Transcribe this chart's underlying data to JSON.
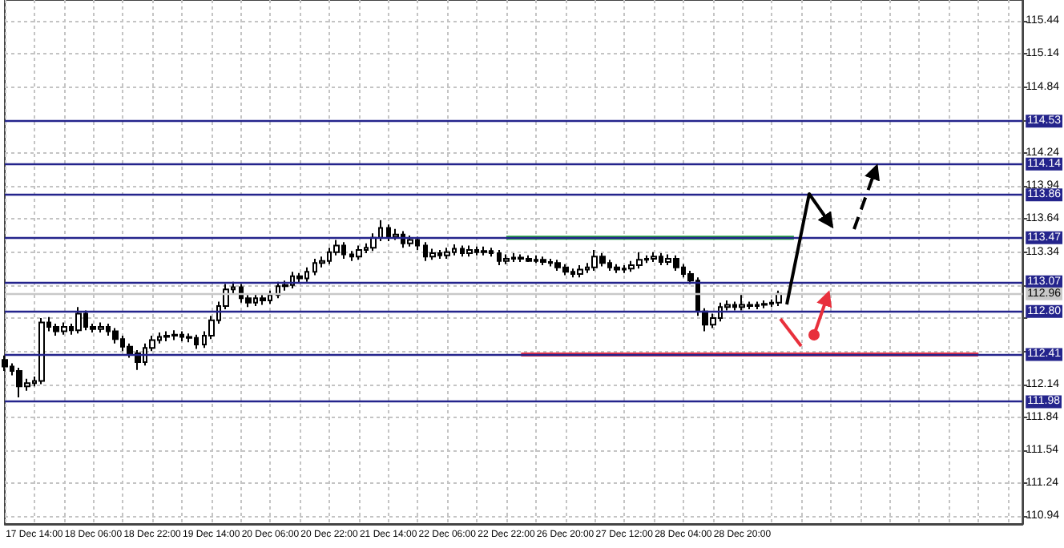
{
  "chart_data": {
    "type": "candlestick",
    "color": "#000000",
    "grid": true,
    "categories": [
      null,
      null,
      null,
      null,
      "17 Dec 14:00",
      null,
      null,
      null,
      null,
      null,
      null,
      null,
      "18 Dec 06:00",
      null,
      null,
      null,
      null,
      null,
      null,
      null,
      "18 Dec 22:00",
      null,
      null,
      null,
      null,
      null,
      null,
      null,
      "19 Dec 14:00",
      null,
      null,
      null,
      null,
      null,
      null,
      null,
      "20 Dec 06:00",
      null,
      null,
      null,
      null,
      null,
      null,
      null,
      "20 Dec 22:00",
      null,
      null,
      null,
      null,
      null,
      null,
      null,
      "21 Dec 14:00",
      null,
      null,
      null,
      null,
      null,
      null,
      null,
      "22 Dec 06:00",
      null,
      null,
      null,
      null,
      null,
      null,
      null,
      "22 Dec 22:00",
      null,
      null,
      null,
      null,
      null,
      null,
      null,
      "26 Dec 20:00",
      null,
      null,
      null,
      null,
      null,
      null,
      null,
      "27 Dec 12:00",
      null,
      null,
      null,
      null,
      null,
      null,
      null,
      "28 Dec 04:00",
      null,
      null,
      null,
      null,
      null,
      null,
      null,
      "28 Dec 20:00",
      null,
      null,
      null,
      null,
      null,
      null,
      null,
      null,
      null,
      null,
      null,
      null,
      null,
      null,
      null,
      null,
      null,
      null,
      null,
      null,
      null,
      null,
      null,
      null,
      null,
      null,
      null,
      null,
      null,
      null,
      null,
      null,
      null,
      null,
      null,
      null,
      null,
      null
    ],
    "ohlc": [
      [
        112.36,
        112.4,
        112.26,
        112.3
      ],
      [
        112.3,
        112.33,
        112.22,
        112.26
      ],
      [
        112.26,
        112.29,
        112.02,
        112.12
      ],
      [
        112.12,
        112.19,
        112.08,
        112.15
      ],
      [
        112.15,
        112.21,
        112.12,
        112.17
      ],
      [
        112.17,
        112.74,
        112.14,
        112.7
      ],
      [
        112.7,
        112.75,
        112.62,
        112.66
      ],
      [
        112.66,
        112.69,
        112.58,
        112.62
      ],
      [
        112.62,
        112.7,
        112.59,
        112.66
      ],
      [
        112.66,
        112.69,
        112.59,
        112.63
      ],
      [
        112.63,
        112.84,
        112.6,
        112.78
      ],
      [
        112.78,
        112.81,
        112.63,
        112.66
      ],
      [
        112.66,
        112.69,
        112.61,
        112.64
      ],
      [
        112.64,
        112.7,
        112.61,
        112.66
      ],
      [
        112.66,
        112.69,
        112.58,
        112.62
      ],
      [
        112.62,
        112.65,
        112.51,
        112.55
      ],
      [
        112.55,
        112.58,
        112.44,
        112.48
      ],
      [
        112.48,
        112.51,
        112.38,
        112.42
      ],
      [
        112.42,
        112.45,
        112.27,
        112.34
      ],
      [
        112.34,
        112.51,
        112.31,
        112.47
      ],
      [
        112.47,
        112.58,
        112.44,
        112.54
      ],
      [
        112.54,
        112.61,
        112.51,
        112.57
      ],
      [
        112.57,
        112.62,
        112.53,
        112.58
      ],
      [
        112.58,
        112.63,
        112.54,
        112.59
      ],
      [
        112.59,
        112.62,
        112.53,
        112.57
      ],
      [
        112.57,
        112.6,
        112.52,
        112.56
      ],
      [
        112.56,
        112.59,
        112.46,
        112.5
      ],
      [
        112.5,
        112.62,
        112.47,
        112.58
      ],
      [
        112.58,
        112.76,
        112.55,
        112.72
      ],
      [
        112.72,
        112.89,
        112.69,
        112.85
      ],
      [
        112.85,
        113.05,
        112.82,
        113.0
      ],
      [
        113.0,
        113.07,
        112.96,
        113.02
      ],
      [
        113.02,
        113.05,
        112.88,
        112.92
      ],
      [
        112.92,
        112.95,
        112.84,
        112.88
      ],
      [
        112.88,
        112.96,
        112.85,
        112.92
      ],
      [
        112.92,
        112.95,
        112.86,
        112.9
      ],
      [
        112.9,
        112.99,
        112.87,
        112.95
      ],
      [
        112.95,
        113.07,
        112.92,
        113.03
      ],
      [
        113.03,
        113.08,
        112.99,
        113.04
      ],
      [
        113.04,
        113.16,
        113.01,
        113.12
      ],
      [
        113.12,
        113.15,
        113.06,
        113.1
      ],
      [
        113.1,
        113.2,
        113.07,
        113.16
      ],
      [
        113.16,
        113.28,
        113.13,
        113.24
      ],
      [
        113.24,
        113.3,
        113.2,
        113.26
      ],
      [
        113.26,
        113.38,
        113.23,
        113.34
      ],
      [
        113.34,
        113.45,
        113.31,
        113.4
      ],
      [
        113.4,
        113.43,
        113.28,
        113.32
      ],
      [
        113.32,
        113.35,
        113.26,
        113.3
      ],
      [
        113.3,
        113.4,
        113.27,
        113.36
      ],
      [
        113.36,
        113.42,
        113.33,
        113.38
      ],
      [
        113.38,
        113.51,
        113.35,
        113.47
      ],
      [
        113.47,
        113.63,
        113.44,
        113.56
      ],
      [
        113.56,
        113.59,
        113.44,
        113.48
      ],
      [
        113.48,
        113.55,
        113.45,
        113.5
      ],
      [
        113.5,
        113.53,
        113.38,
        113.42
      ],
      [
        113.42,
        113.49,
        113.39,
        113.45
      ],
      [
        113.45,
        113.48,
        113.36,
        113.4
      ],
      [
        113.4,
        113.43,
        113.26,
        113.3
      ],
      [
        113.3,
        113.37,
        113.27,
        113.33
      ],
      [
        113.33,
        113.36,
        113.28,
        113.31
      ],
      [
        113.31,
        113.38,
        113.28,
        113.34
      ],
      [
        113.34,
        113.41,
        113.31,
        113.37
      ],
      [
        113.37,
        113.4,
        113.3,
        113.33
      ],
      [
        113.33,
        113.4,
        113.3,
        113.36
      ],
      [
        113.36,
        113.39,
        113.31,
        113.34
      ],
      [
        113.34,
        113.39,
        113.31,
        113.35
      ],
      [
        113.35,
        113.38,
        113.3,
        113.33
      ],
      [
        113.33,
        113.36,
        113.22,
        113.26
      ],
      [
        113.26,
        113.32,
        113.23,
        113.28
      ],
      [
        113.28,
        113.33,
        113.25,
        113.29
      ],
      [
        113.29,
        113.32,
        113.25,
        113.28
      ],
      [
        113.28,
        113.31,
        113.25,
        113.26
      ],
      [
        113.26,
        113.31,
        113.24,
        113.27
      ],
      [
        113.27,
        113.3,
        113.22,
        113.25
      ],
      [
        113.25,
        113.28,
        113.21,
        113.24
      ],
      [
        113.24,
        113.27,
        113.17,
        113.2
      ],
      [
        113.2,
        113.23,
        113.13,
        113.16
      ],
      [
        113.16,
        113.19,
        113.11,
        113.14
      ],
      [
        113.14,
        113.22,
        113.11,
        113.18
      ],
      [
        113.18,
        113.24,
        113.15,
        113.2
      ],
      [
        113.2,
        113.36,
        113.17,
        113.3
      ],
      [
        113.3,
        113.33,
        113.21,
        113.24
      ],
      [
        113.24,
        113.27,
        113.17,
        113.2
      ],
      [
        113.2,
        113.23,
        113.15,
        113.18
      ],
      [
        113.18,
        113.22,
        113.15,
        113.19
      ],
      [
        113.19,
        113.26,
        113.16,
        113.22
      ],
      [
        113.22,
        113.34,
        113.19,
        113.27
      ],
      [
        113.27,
        113.31,
        113.24,
        113.28
      ],
      [
        113.28,
        113.34,
        113.25,
        113.3
      ],
      [
        113.3,
        113.33,
        113.22,
        113.25
      ],
      [
        113.25,
        113.32,
        113.22,
        113.28
      ],
      [
        113.28,
        113.31,
        113.17,
        113.2
      ],
      [
        113.2,
        113.23,
        113.11,
        113.14
      ],
      [
        113.14,
        113.17,
        113.05,
        113.08
      ],
      [
        113.08,
        113.11,
        112.76,
        112.8
      ],
      [
        112.8,
        112.83,
        112.62,
        112.68
      ],
      [
        112.68,
        112.78,
        112.65,
        112.74
      ],
      [
        112.74,
        112.88,
        112.71,
        112.84
      ],
      [
        112.84,
        112.9,
        112.81,
        112.86
      ],
      [
        112.86,
        112.89,
        112.81,
        112.84
      ],
      [
        112.84,
        112.96,
        112.81,
        112.86
      ],
      [
        112.86,
        112.89,
        112.82,
        112.85
      ],
      [
        112.85,
        112.89,
        112.82,
        112.86
      ],
      [
        112.86,
        112.9,
        112.83,
        112.87
      ],
      [
        112.87,
        112.91,
        112.84,
        112.88
      ],
      [
        112.88,
        112.99,
        112.85,
        112.96
      ],
      null,
      null,
      null,
      null,
      null,
      null,
      null,
      null,
      null,
      null,
      null,
      null,
      null,
      null,
      null,
      null,
      null,
      null,
      null,
      null,
      null,
      null,
      null,
      null,
      null,
      null,
      null,
      null,
      null,
      null,
      null,
      null,
      null
    ],
    "series": [
      {
        "type": "line",
        "color": "#22a03c",
        "values": [
          null,
          null,
          null,
          null,
          null,
          null,
          null,
          null,
          null,
          null,
          null,
          null,
          null,
          null,
          null,
          null,
          null,
          null,
          null,
          null,
          null,
          null,
          null,
          null,
          null,
          null,
          null,
          null,
          null,
          null,
          null,
          null,
          null,
          null,
          null,
          null,
          null,
          null,
          null,
          null,
          null,
          null,
          null,
          null,
          null,
          null,
          null,
          null,
          null,
          null,
          null,
          null,
          null,
          null,
          null,
          null,
          null,
          null,
          null,
          null,
          null,
          null,
          null,
          null,
          null,
          null,
          null,
          null,
          113.47,
          113.47,
          113.47,
          113.47,
          113.47,
          113.47,
          113.47,
          113.47,
          113.47,
          113.47,
          113.47,
          113.47,
          113.47,
          113.47,
          113.47,
          113.47,
          113.47,
          113.47,
          113.47,
          113.47,
          113.47,
          113.47,
          113.47,
          113.47,
          113.47,
          113.47,
          113.47,
          113.47,
          113.47,
          113.47,
          113.47,
          113.47,
          113.47,
          113.47,
          113.47,
          113.47,
          113.47,
          113.47,
          113.47,
          113.47,
          null,
          null,
          null,
          null,
          null,
          null,
          null,
          null,
          null,
          null,
          null,
          null,
          null,
          null,
          null,
          null,
          null,
          null,
          null,
          null,
          null,
          null,
          null,
          null,
          null,
          null,
          null,
          null,
          null,
          null,
          null
        ]
      },
      {
        "type": "line",
        "color": "#ee3344",
        "values": [
          null,
          null,
          null,
          null,
          null,
          null,
          null,
          null,
          null,
          null,
          null,
          null,
          null,
          null,
          null,
          null,
          null,
          null,
          null,
          null,
          null,
          null,
          null,
          null,
          null,
          null,
          null,
          null,
          null,
          null,
          null,
          null,
          null,
          null,
          null,
          null,
          null,
          null,
          null,
          null,
          null,
          null,
          null,
          null,
          null,
          null,
          null,
          null,
          null,
          null,
          null,
          null,
          null,
          null,
          null,
          null,
          null,
          null,
          null,
          null,
          null,
          null,
          null,
          null,
          null,
          null,
          null,
          null,
          null,
          null,
          112.41,
          112.41,
          112.41,
          112.41,
          112.41,
          112.41,
          112.41,
          112.41,
          112.41,
          112.41,
          112.41,
          112.41,
          112.41,
          112.41,
          112.41,
          112.41,
          112.41,
          112.41,
          112.41,
          112.41,
          112.41,
          112.41,
          112.41,
          112.41,
          112.41,
          112.41,
          112.41,
          112.41,
          112.41,
          112.41,
          112.41,
          112.41,
          112.41,
          112.41,
          112.41,
          112.41,
          112.41,
          112.41,
          112.41,
          112.41,
          112.41,
          112.41,
          112.41,
          112.41,
          112.41,
          112.41,
          112.41,
          112.41,
          112.41,
          112.41,
          112.41,
          112.41,
          112.41,
          112.41,
          112.41,
          112.41,
          112.41,
          112.41,
          112.41,
          112.41,
          112.41,
          112.41,
          112.41,
          null,
          null,
          null,
          null,
          null,
          null
        ]
      }
    ],
    "ylim": [
      110.87,
      115.63
    ],
    "yticks": [
      110.94,
      111.24,
      111.54,
      111.84,
      112.14,
      {
        "value": 112.44,
        "label": null
      },
      {
        "value": 112.74,
        "label": null
      },
      {
        "value": 113.04,
        "label": null
      },
      113.34,
      113.64,
      113.94,
      114.24,
      114.54,
      114.84,
      115.14,
      115.44
    ],
    "ref_lines": [
      {
        "axis": "y",
        "value": 114.53,
        "label": "114.53",
        "color": "#24248c"
      },
      {
        "axis": "y",
        "value": 114.14,
        "label": "114.14",
        "color": "#24248c"
      },
      {
        "axis": "y",
        "value": 113.86,
        "label": "113.86",
        "color": "#24248c"
      },
      {
        "axis": "y",
        "value": 113.47,
        "label": "113.47",
        "color": "#24248c"
      },
      {
        "axis": "y",
        "value": 113.07,
        "label": "113.07",
        "color": "#24248c"
      },
      {
        "axis": "y",
        "value": 112.96,
        "label": "112.96",
        "color": "#c8c8c8"
      },
      {
        "axis": "y",
        "value": 112.8,
        "label": "112.80",
        "color": "#24248c"
      },
      {
        "axis": "y",
        "value": 112.41,
        "label": "112.41",
        "color": "#24248c"
      },
      {
        "axis": "y",
        "value": 111.98,
        "label": "111.98",
        "color": "#24248c"
      }
    ]
  }
}
